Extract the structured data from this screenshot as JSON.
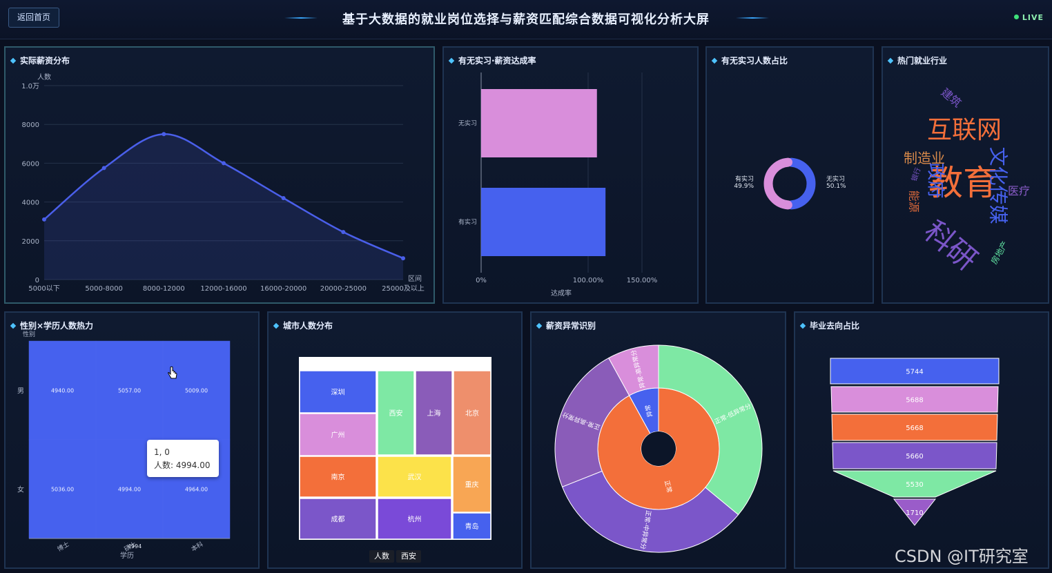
{
  "header": {
    "back_label": "返回首页",
    "title": "基于大数据的就业岗位选择与薪资匹配综合数据可视化分析大屏",
    "live_label": "LIVE"
  },
  "panels": {
    "salary": "实际薪资分布",
    "intern_rate": "有无实习·薪资达成率",
    "intern_ratio": "有无实习人数占比",
    "industry": "热门就业行业",
    "heat": "性别×学历人数热力",
    "city": "城市人数分布",
    "anomaly": "薪资异常识别",
    "destination": "毕业去向占比"
  },
  "chart_data": [
    {
      "type": "line",
      "title": "实际薪资分布",
      "ylabel": "人数",
      "xlabel": "区间",
      "categories": [
        "5000以下",
        "5000-8000",
        "8000-12000",
        "12000-16000",
        "16000-20000",
        "20000-25000",
        "25000及以上"
      ],
      "values": [
        3100,
        5750,
        7500,
        6000,
        4200,
        2450,
        1100
      ],
      "ylim": [
        0,
        10000
      ],
      "yticks": [
        "0",
        "2000",
        "4000",
        "6000",
        "8000",
        "1.0万"
      ],
      "smooth": true,
      "color": "#4a5fea"
    },
    {
      "type": "bar",
      "orientation": "horizontal",
      "title": "有无实习·薪资达成率",
      "categories": [
        "无实习",
        "有实习"
      ],
      "values": [
        108,
        116
      ],
      "xlabel": "达成率",
      "xlim": [
        0,
        150
      ],
      "xticks": [
        "0%",
        "100.00%",
        "150.00%"
      ],
      "colors": [
        "#d98edb",
        "#4661ee"
      ]
    },
    {
      "type": "pie",
      "donut": true,
      "title": "有无实习人数占比",
      "labels": [
        "有实习\n49.9%",
        "无实习\n50.1%"
      ],
      "values": [
        49.9,
        50.1
      ],
      "colors": [
        "#d98edb",
        "#4661ee"
      ]
    },
    {
      "type": "wordcloud",
      "title": "热门就业行业",
      "words": [
        {
          "text": "互联网",
          "color": "#f36f3a"
        },
        {
          "text": "教育",
          "color": "#f36f3a"
        },
        {
          "text": "科研",
          "color": "#7b56c9"
        },
        {
          "text": "文化传媒",
          "color": "#4661ee"
        },
        {
          "text": "政府",
          "color": "#4661ee"
        },
        {
          "text": "制造业",
          "color": "#d98a4a"
        },
        {
          "text": "医疗",
          "color": "#8a5cc9"
        },
        {
          "text": "建筑",
          "color": "#7b56c9"
        },
        {
          "text": "能源",
          "color": "#d9683a"
        },
        {
          "text": "银行",
          "color": "#7b56c9"
        },
        {
          "text": "房地产",
          "color": "#5fe0a0"
        }
      ]
    },
    {
      "type": "heatmap",
      "title": "性别×学历人数热力",
      "y_categories": [
        "男",
        "女"
      ],
      "x_categories": [
        "博士",
        "硕士",
        "本科"
      ],
      "xlabel": "学历",
      "ylabel": "性别",
      "values": [
        [
          4940,
          5057,
          5009
        ],
        [
          5036,
          4994,
          4964
        ]
      ],
      "value_labels": [
        [
          "4940.00",
          "5057.00",
          "5009.00"
        ],
        [
          "5036.00",
          "4994.00",
          "4964.00"
        ]
      ],
      "color": "#4661ee",
      "tooltip": {
        "line1": "1, 0",
        "line2": "人数:  4994.00"
      },
      "axis_tag": "4994"
    },
    {
      "type": "treemap",
      "title": "城市人数分布",
      "cells": [
        {
          "name": "深圳",
          "color": "#4661ee"
        },
        {
          "name": "广州",
          "color": "#d98edb"
        },
        {
          "name": "西安",
          "color": "#7ee8a4"
        },
        {
          "name": "上海",
          "color": "#8a5cb9"
        },
        {
          "name": "北京",
          "color": "#ee8f6c"
        },
        {
          "name": "南京",
          "color": "#f36f3a"
        },
        {
          "name": "武汉",
          "color": "#fce24a"
        },
        {
          "name": "重庆",
          "color": "#f8a654"
        },
        {
          "name": "成都",
          "color": "#7b56c9"
        },
        {
          "name": "杭州",
          "color": "#7a4ad8"
        },
        {
          "name": "青岛",
          "color": "#4661ee"
        }
      ],
      "legend": [
        "人数",
        "西安"
      ]
    },
    {
      "type": "sunburst",
      "title": "薪资异常识别",
      "inner": [
        {
          "name": "正常",
          "value": 92,
          "color": "#f36f3a"
        },
        {
          "name": "异常",
          "value": 8,
          "color": "#4661ee"
        }
      ],
      "outer": [
        {
          "name": "正常-低异常分",
          "value": 36,
          "color": "#7ee8a4"
        },
        {
          "name": "正常-中异常分",
          "value": 33,
          "color": "#7b56c9"
        },
        {
          "name": "正常-高异常分",
          "value": 23,
          "color": "#8a5cb9"
        },
        {
          "name": "异常-高异常分",
          "value": 8,
          "color": "#d98edb"
        }
      ]
    },
    {
      "type": "funnel",
      "title": "毕业去向占比",
      "values": [
        5744,
        5688,
        5668,
        5660,
        5530,
        1710
      ],
      "colors": [
        "#4661ee",
        "#d98edb",
        "#f36f3a",
        "#7b56c9",
        "#7ee8a4",
        "#9a5cc9"
      ]
    }
  ],
  "watermark": "CSDN @IT研究室"
}
